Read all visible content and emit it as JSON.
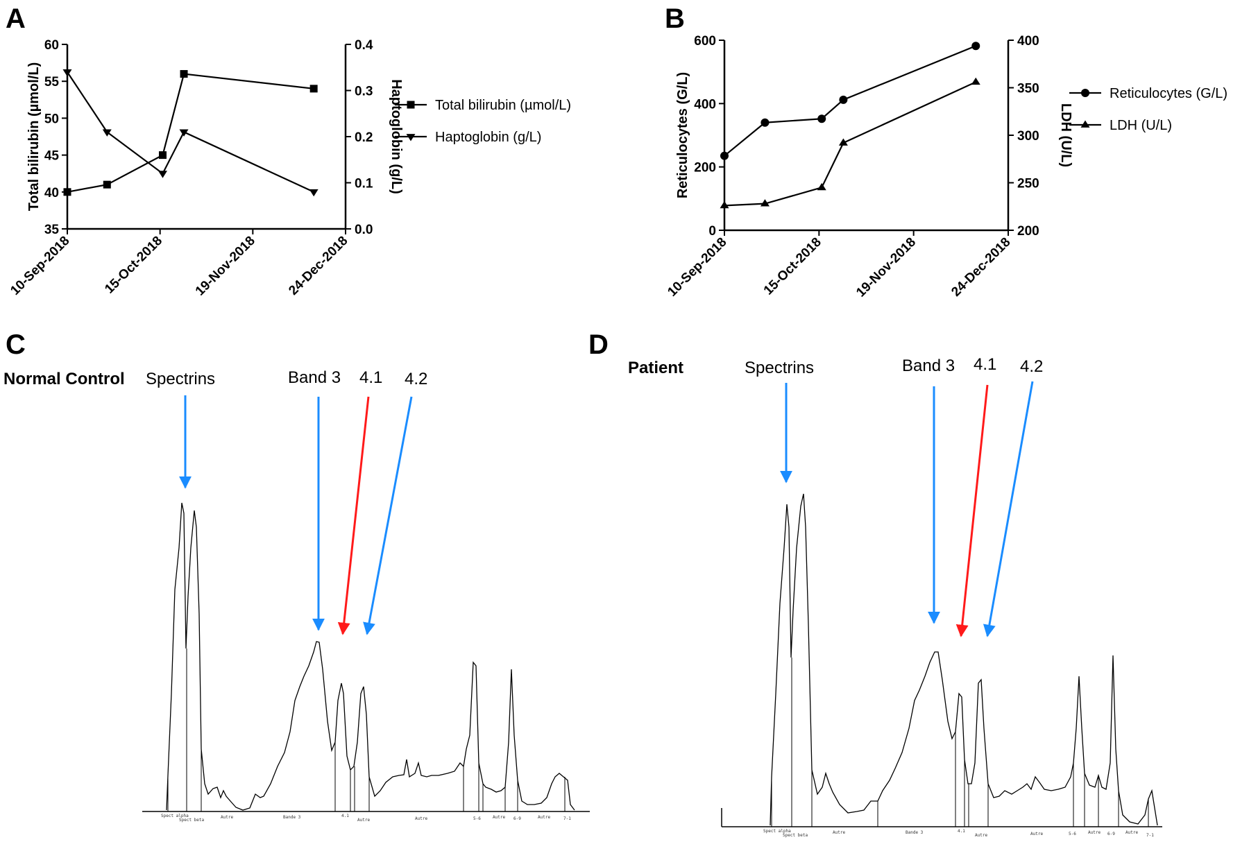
{
  "panels": {
    "A": "A",
    "B": "B",
    "C": "C",
    "D": "D"
  },
  "chart_data": [
    {
      "panel": "A",
      "type": "line",
      "xlabel": "",
      "ylabel": "Total bilirubin (µmol/L)",
      "ylabel_right": "Haptoglobin (g/L)",
      "x_ticks": [
        "10-Sep-2018",
        "15-Oct-2018",
        "19-Nov-2018",
        "24-Dec-2018"
      ],
      "xlim_days": [
        0,
        105
      ],
      "ylim": [
        35,
        60
      ],
      "y_ticks": [
        "35",
        "40",
        "45",
        "50",
        "55",
        "60"
      ],
      "ylim_right": [
        0.0,
        0.4
      ],
      "y_ticks_right": [
        "0.0",
        "0.1",
        "0.2",
        "0.3",
        "0.4"
      ],
      "legend_position": "right",
      "series": [
        {
          "name": "Total bilirubin (µmol/L)",
          "axis": "left",
          "marker": "square",
          "x": [
            "10-Sep-2018",
            "25-Sep-2018",
            "16-Oct-2018",
            "24-Oct-2018",
            "12-Dec-2018"
          ],
          "x_days": [
            0,
            15,
            36,
            44,
            93
          ],
          "values": [
            40,
            41,
            45,
            56,
            54
          ]
        },
        {
          "name": "Haptoglobin (g/L)",
          "axis": "right",
          "marker": "triangle-down",
          "x": [
            "10-Sep-2018",
            "25-Sep-2018",
            "16-Oct-2018",
            "24-Oct-2018",
            "12-Dec-2018"
          ],
          "x_days": [
            0,
            15,
            36,
            44,
            93
          ],
          "values": [
            0.34,
            0.21,
            0.12,
            0.21,
            0.08
          ]
        }
      ]
    },
    {
      "panel": "B",
      "type": "line",
      "xlabel": "",
      "ylabel": "Reticulocytes (G/L)",
      "ylabel_right": "LDH (U/L)",
      "x_ticks": [
        "10-Sep-2018",
        "15-Oct-2018",
        "19-Nov-2018",
        "24-Dec-2018"
      ],
      "xlim_days": [
        0,
        105
      ],
      "ylim": [
        0,
        600
      ],
      "y_ticks": [
        "0",
        "200",
        "400",
        "600"
      ],
      "ylim_right": [
        200,
        400
      ],
      "y_ticks_right": [
        "200",
        "250",
        "300",
        "350",
        "400"
      ],
      "legend_position": "right",
      "series": [
        {
          "name": "Reticulocytes (G/L)",
          "axis": "left",
          "marker": "circle",
          "x": [
            "10-Sep-2018",
            "25-Sep-2018",
            "16-Oct-2018",
            "24-Oct-2018",
            "12-Dec-2018"
          ],
          "x_days": [
            0,
            15,
            36,
            44,
            93
          ],
          "values": [
            235,
            340,
            352,
            412,
            582
          ]
        },
        {
          "name": "LDH (U/L)",
          "axis": "right",
          "marker": "triangle-up",
          "x": [
            "10-Sep-2018",
            "25-Sep-2018",
            "16-Oct-2018",
            "24-Oct-2018",
            "12-Dec-2018"
          ],
          "x_days": [
            0,
            15,
            36,
            44,
            93
          ],
          "values": [
            226,
            228,
            245,
            292,
            356
          ]
        }
      ]
    }
  ],
  "gels": {
    "C": {
      "sample": "Normal Control",
      "spectrins": "Spectrins",
      "band3": "Band 3",
      "b41": "4.1",
      "b42": "4.2",
      "scan_labels": [
        "Spect alpha",
        "Spect beta",
        "Autre",
        "Bande 3",
        "4.1",
        "Autre",
        "Autre",
        "5-6",
        "Autre",
        "6-9",
        "Autre",
        "7-1"
      ]
    },
    "D": {
      "sample": "Patient",
      "spectrins": "Spectrins",
      "band3": "Band 3",
      "b41": "4.1",
      "b42": "4.2",
      "scan_labels": [
        "Spect alpha",
        "Spect beta",
        "Autre",
        "Bande 3",
        "4.1",
        "Autre",
        "Autre",
        "5-6",
        "Autre",
        "6-9",
        "Autre",
        "7-1"
      ]
    }
  },
  "colors": {
    "arrow_blue": "#1a8cff",
    "arrow_red": "#ff1a1a",
    "line": "#000000"
  }
}
